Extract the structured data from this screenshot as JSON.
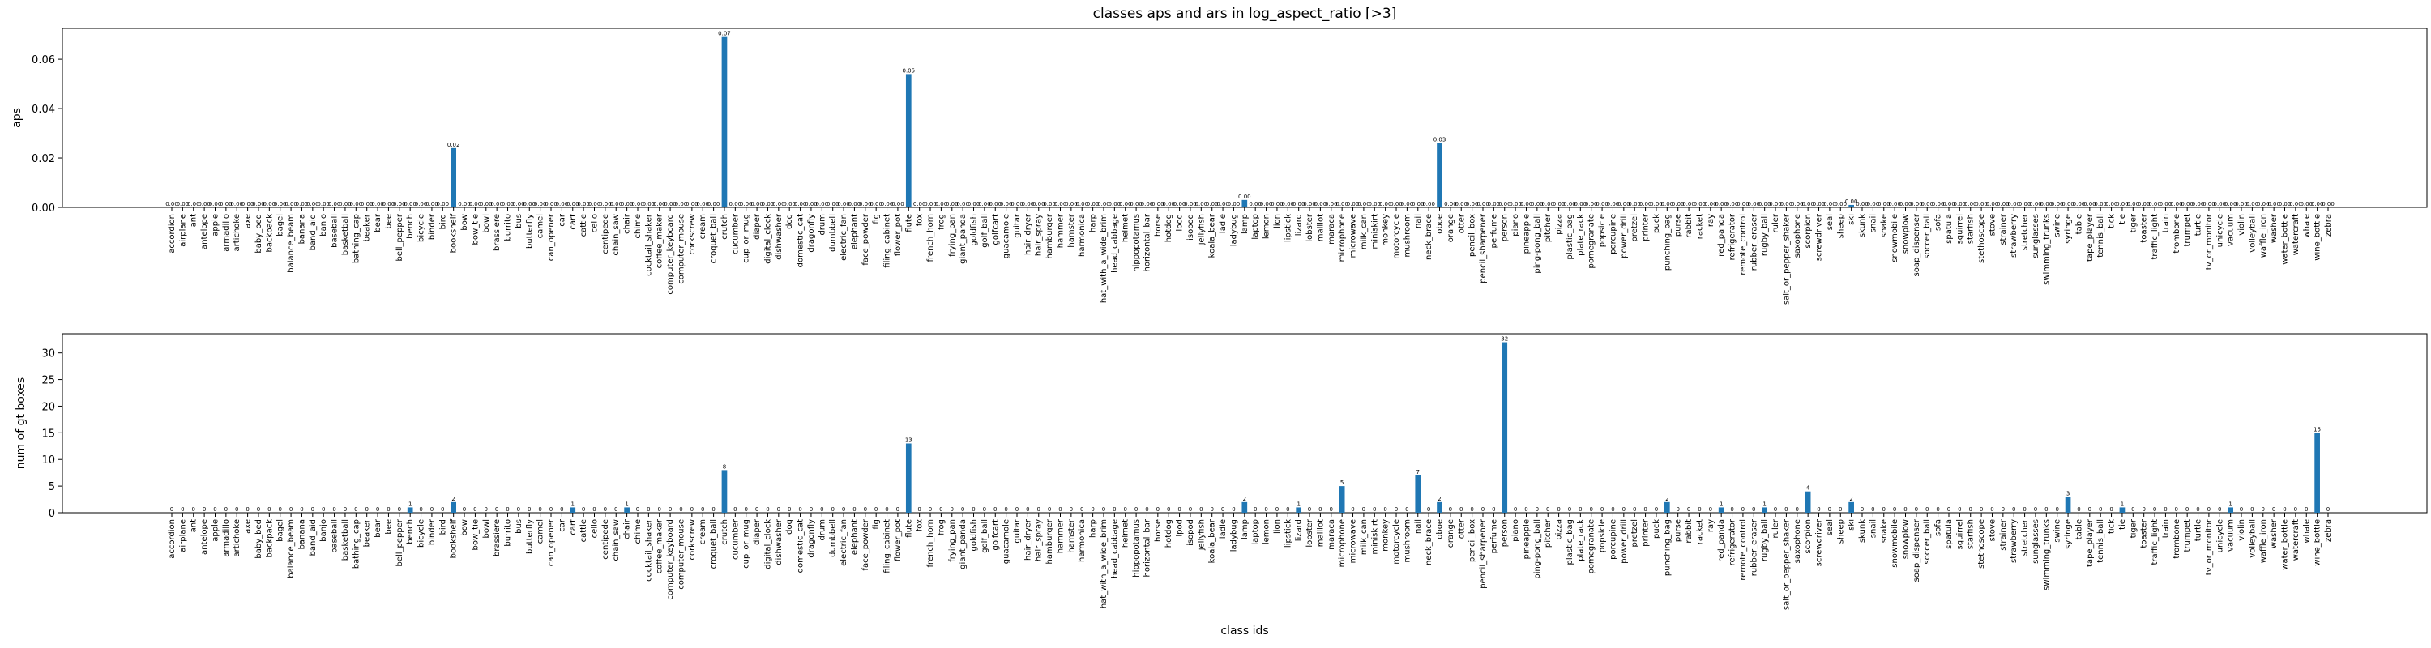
{
  "chart_data": [
    {
      "type": "bar",
      "title": "classes aps and ars in log_aspect_ratio [>3]",
      "ylabel": "aps",
      "color": "#1f77b4",
      "categories": [
        "accordion",
        "airplane",
        "ant",
        "antelope",
        "apple",
        "armadillo",
        "artichoke",
        "axe",
        "baby_bed",
        "backpack",
        "bagel",
        "balance_beam",
        "banana",
        "band_aid",
        "banjo",
        "baseball",
        "basketball",
        "bathing_cap",
        "beaker",
        "bear",
        "bee",
        "bell_pepper",
        "bench",
        "bicycle",
        "binder",
        "bird",
        "bookshelf",
        "bow",
        "bow_tie",
        "bowl",
        "brassiere",
        "burrito",
        "bus",
        "butterfly",
        "camel",
        "can_opener",
        "car",
        "cart",
        "cattle",
        "cello",
        "centipede",
        "chain_saw",
        "chair",
        "chime",
        "cocktail_shaker",
        "coffee_maker",
        "computer_keyboard",
        "computer_mouse",
        "corkscrew",
        "cream",
        "croquet_ball",
        "crutch",
        "cucumber",
        "cup_or_mug",
        "diaper",
        "digital_clock",
        "dishwasher",
        "dog",
        "domestic_cat",
        "dragonfly",
        "drum",
        "dumbbell",
        "electric_fan",
        "elephant",
        "face_powder",
        "fig",
        "filing_cabinet",
        "flower_pot",
        "flute",
        "fox",
        "french_horn",
        "frog",
        "frying_pan",
        "giant_panda",
        "goldfish",
        "golf_ball",
        "golfcart",
        "guacamole",
        "guitar",
        "hair_dryer",
        "hair_spray",
        "hamburger",
        "hammer",
        "hamster",
        "harmonica",
        "harp",
        "hat_with_a_wide_brim",
        "head_cabbage",
        "helmet",
        "hippopotamus",
        "horizontal_bar",
        "horse",
        "hotdog",
        "ipod",
        "isopod",
        "jellyfish",
        "koala_bear",
        "ladle",
        "ladybug",
        "lamp",
        "laptop",
        "lemon",
        "lion",
        "lipstick",
        "lizard",
        "lobster",
        "maillot",
        "maraca",
        "microphone",
        "microwave",
        "milk_can",
        "miniskirt",
        "monkey",
        "motorcycle",
        "mushroom",
        "nail",
        "neck_brace",
        "oboe",
        "orange",
        "otter",
        "pencil_box",
        "pencil_sharpener",
        "perfume",
        "person",
        "piano",
        "pineapple",
        "ping-pong_ball",
        "pitcher",
        "pizza",
        "plastic_bag",
        "plate_rack",
        "pomegranate",
        "popsicle",
        "porcupine",
        "power_drill",
        "pretzel",
        "printer",
        "puck",
        "punching_bag",
        "purse",
        "rabbit",
        "racket",
        "ray",
        "red_panda",
        "refrigerator",
        "remote_control",
        "rubber_eraser",
        "rugby_ball",
        "ruler",
        "salt_or_pepper_shaker",
        "saxophone",
        "scorpion",
        "screwdriver",
        "seal",
        "sheep",
        "ski",
        "skunk",
        "snail",
        "snake",
        "snowmobile",
        "snowplow",
        "soap_dispenser",
        "soccer_ball",
        "sofa",
        "spatula",
        "squirrel",
        "starfish",
        "stethoscope",
        "stove",
        "strainer",
        "strawberry",
        "stretcher",
        "sunglasses",
        "swimming_trunks",
        "swine",
        "syringe",
        "table",
        "tape_player",
        "tennis_ball",
        "tick",
        "tie",
        "tiger",
        "toaster",
        "traffic_light",
        "train",
        "trombone",
        "trumpet",
        "turtle",
        "tv_or_monitor",
        "unicycle",
        "vacuum",
        "violin",
        "volleyball",
        "waffle_iron",
        "washer",
        "water_bottle",
        "watercraft",
        "whale",
        "wine_bottle",
        "zebra"
      ],
      "values": [
        0,
        0,
        0,
        0,
        0,
        0,
        0,
        0,
        0,
        0,
        0,
        0,
        0,
        0,
        0,
        0,
        0,
        0,
        0,
        0,
        0,
        0,
        0,
        0,
        0,
        0,
        0.024,
        0,
        0,
        0,
        0,
        0,
        0,
        0,
        0,
        0,
        0,
        0,
        0,
        0,
        0,
        0,
        0,
        0,
        0,
        0,
        0,
        0,
        0,
        0,
        0,
        0.069,
        0,
        0,
        0,
        0,
        0,
        0,
        0,
        0,
        0,
        0,
        0,
        0,
        0,
        0,
        0,
        0,
        0.054,
        0,
        0,
        0,
        0,
        0,
        0,
        0,
        0,
        0,
        0,
        0,
        0,
        0,
        0,
        0,
        0,
        0,
        0,
        0,
        0,
        0,
        0,
        0,
        0,
        0,
        0,
        0,
        0,
        0,
        0,
        0.003,
        0,
        0,
        0,
        0,
        0,
        0,
        0,
        0,
        0,
        0,
        0,
        0,
        0,
        0,
        0,
        0,
        0,
        0.026,
        0,
        0,
        0,
        0,
        0,
        0,
        0,
        0,
        0,
        0,
        0,
        0,
        0,
        0,
        0,
        0,
        0,
        0,
        0,
        0,
        0,
        0,
        0,
        0,
        0,
        0,
        0,
        0,
        0,
        0,
        0,
        0,
        0,
        0,
        0,
        0,
        0,
        0.001,
        0,
        0,
        0,
        0,
        0,
        0,
        0,
        0,
        0,
        0,
        0,
        0,
        0,
        0,
        0,
        0,
        0,
        0,
        0,
        0,
        0,
        0,
        0,
        0,
        0,
        0,
        0,
        0,
        0,
        0,
        0,
        0,
        0,
        0,
        0,
        0,
        0,
        0,
        0,
        0,
        0,
        0,
        0,
        0
      ],
      "value_labels": [
        "0.00",
        "0.00",
        "0.00",
        "0.00",
        "0.00",
        "0.00",
        "0.00",
        "0.00",
        "0.00",
        "0.00",
        "0.00",
        "0.00",
        "0.00",
        "0.00",
        "0.00",
        "0.00",
        "0.00",
        "0.00",
        "0.00",
        "0.00",
        "0.00",
        "0.00",
        "0.00",
        "0.00",
        "0.00",
        "0.00",
        "0.02",
        "0.00",
        "0.00",
        "0.00",
        "0.00",
        "0.00",
        "0.00",
        "0.00",
        "0.00",
        "0.00",
        "0.00",
        "0.00",
        "0.00",
        "0.00",
        "0.00",
        "0.00",
        "0.00",
        "0.00",
        "0.00",
        "0.00",
        "0.00",
        "0.00",
        "0.00",
        "0.00",
        "0.00",
        "0.07",
        "0.00",
        "0.00",
        "0.00",
        "0.00",
        "0.00",
        "0.00",
        "0.00",
        "0.00",
        "0.00",
        "0.00",
        "0.00",
        "0.00",
        "0.00",
        "0.00",
        "0.00",
        "0.00",
        "0.05",
        "0.00",
        "0.00",
        "0.00",
        "0.00",
        "0.00",
        "0.00",
        "0.00",
        "0.00",
        "0.00",
        "0.00",
        "0.00",
        "0.00",
        "0.00",
        "0.00",
        "0.00",
        "0.00",
        "0.00",
        "0.00",
        "0.00",
        "0.00",
        "0.00",
        "0.00",
        "0.00",
        "0.00",
        "0.00",
        "0.00",
        "0.00",
        "0.00",
        "0.00",
        "0.00",
        "0.00",
        "0.00",
        "0.00",
        "0.00",
        "0.00",
        "0.00",
        "0.00",
        "0.00",
        "0.00",
        "0.00",
        "0.00",
        "0.00",
        "0.00",
        "0.00",
        "0.00",
        "0.00",
        "0.00",
        "0.00",
        "0.03",
        "0.00",
        "0.00",
        "0.00",
        "0.00",
        "0.00",
        "0.00",
        "0.00",
        "0.00",
        "0.00",
        "0.00",
        "0.00",
        "0.00",
        "0.00",
        "0.00",
        "0.00",
        "0.00",
        "0.00",
        "0.00",
        "0.00",
        "0.00",
        "0.00",
        "0.00",
        "0.00",
        "0.00",
        "0.00",
        "0.00",
        "0.00",
        "0.00",
        "0.00",
        "0.00",
        "0.00",
        "0.00",
        "0.00",
        "0.00",
        "0.00",
        "0.00",
        "0.00",
        "0.00",
        "0.00",
        "0.00",
        "0.00",
        "0.00",
        "0.00",
        "0.00",
        "0.00",
        "0.00",
        "0.00",
        "0.00",
        "0.00",
        "0.00",
        "0.00",
        "0.00",
        "0.00",
        "0.00",
        "0.00",
        "0.00",
        "0.00",
        "0.00",
        "0.00",
        "0.00",
        "0.00",
        "0.00",
        "0.00",
        "0.00",
        "0.00",
        "0.00",
        "0.00",
        "0.00",
        "0.00",
        "0.00",
        "0.00",
        "0.00",
        "0.00",
        "0.00",
        "0.00",
        "0.00",
        "0.00",
        "0.00",
        "0.00",
        "0.00",
        "0.00",
        "0.00"
      ],
      "ylim": [
        0,
        0.0725
      ],
      "yticks": [
        {
          "value": 0,
          "label": "0.00"
        },
        0.02,
        0.04,
        0.06
      ]
    },
    {
      "type": "bar",
      "ylabel": "num of gt boxes",
      "xlabel": "class ids",
      "color": "#1f77b4",
      "categories": [
        "accordion",
        "airplane",
        "ant",
        "antelope",
        "apple",
        "armadillo",
        "artichoke",
        "axe",
        "baby_bed",
        "backpack",
        "bagel",
        "balance_beam",
        "banana",
        "band_aid",
        "banjo",
        "baseball",
        "basketball",
        "bathing_cap",
        "beaker",
        "bear",
        "bee",
        "bell_pepper",
        "bench",
        "bicycle",
        "binder",
        "bird",
        "bookshelf",
        "bow",
        "bow_tie",
        "bowl",
        "brassiere",
        "burrito",
        "bus",
        "butterfly",
        "camel",
        "can_opener",
        "car",
        "cart",
        "cattle",
        "cello",
        "centipede",
        "chain_saw",
        "chair",
        "chime",
        "cocktail_shaker",
        "coffee_maker",
        "computer_keyboard",
        "computer_mouse",
        "corkscrew",
        "cream",
        "croquet_ball",
        "crutch",
        "cucumber",
        "cup_or_mug",
        "diaper",
        "digital_clock",
        "dishwasher",
        "dog",
        "domestic_cat",
        "dragonfly",
        "drum",
        "dumbbell",
        "electric_fan",
        "elephant",
        "face_powder",
        "fig",
        "filing_cabinet",
        "flower_pot",
        "flute",
        "fox",
        "french_horn",
        "frog",
        "frying_pan",
        "giant_panda",
        "goldfish",
        "golf_ball",
        "golfcart",
        "guacamole",
        "guitar",
        "hair_dryer",
        "hair_spray",
        "hamburger",
        "hammer",
        "hamster",
        "harmonica",
        "harp",
        "hat_with_a_wide_brim",
        "head_cabbage",
        "helmet",
        "hippopotamus",
        "horizontal_bar",
        "horse",
        "hotdog",
        "ipod",
        "isopod",
        "jellyfish",
        "koala_bear",
        "ladle",
        "ladybug",
        "lamp",
        "laptop",
        "lemon",
        "lion",
        "lipstick",
        "lizard",
        "lobster",
        "maillot",
        "maraca",
        "microphone",
        "microwave",
        "milk_can",
        "miniskirt",
        "monkey",
        "motorcycle",
        "mushroom",
        "nail",
        "neck_brace",
        "oboe",
        "orange",
        "otter",
        "pencil_box",
        "pencil_sharpener",
        "perfume",
        "person",
        "piano",
        "pineapple",
        "ping-pong_ball",
        "pitcher",
        "pizza",
        "plastic_bag",
        "plate_rack",
        "pomegranate",
        "popsicle",
        "porcupine",
        "power_drill",
        "pretzel",
        "printer",
        "puck",
        "punching_bag",
        "purse",
        "rabbit",
        "racket",
        "ray",
        "red_panda",
        "refrigerator",
        "remote_control",
        "rubber_eraser",
        "rugby_ball",
        "ruler",
        "salt_or_pepper_shaker",
        "saxophone",
        "scorpion",
        "screwdriver",
        "seal",
        "sheep",
        "ski",
        "skunk",
        "snail",
        "snake",
        "snowmobile",
        "snowplow",
        "soap_dispenser",
        "soccer_ball",
        "sofa",
        "spatula",
        "squirrel",
        "starfish",
        "stethoscope",
        "stove",
        "strainer",
        "strawberry",
        "stretcher",
        "sunglasses",
        "swimming_trunks",
        "swine",
        "syringe",
        "table",
        "tape_player",
        "tennis_ball",
        "tick",
        "tie",
        "tiger",
        "toaster",
        "traffic_light",
        "train",
        "trombone",
        "trumpet",
        "turtle",
        "tv_or_monitor",
        "unicycle",
        "vacuum",
        "violin",
        "volleyball",
        "waffle_iron",
        "washer",
        "water_bottle",
        "watercraft",
        "whale",
        "wine_bottle",
        "zebra"
      ],
      "values": [
        0,
        0,
        0,
        0,
        0,
        0,
        0,
        0,
        0,
        0,
        0,
        0,
        0,
        0,
        0,
        0,
        0,
        0,
        0,
        0,
        0,
        0,
        1,
        0,
        0,
        0,
        2,
        0,
        0,
        0,
        0,
        0,
        0,
        0,
        0,
        0,
        0,
        1,
        0,
        0,
        0,
        0,
        1,
        0,
        0,
        0,
        0,
        0,
        0,
        0,
        0,
        8,
        0,
        0,
        0,
        0,
        0,
        0,
        0,
        0,
        0,
        0,
        0,
        0,
        0,
        0,
        0,
        0,
        13,
        0,
        0,
        0,
        0,
        0,
        0,
        0,
        0,
        0,
        0,
        0,
        0,
        0,
        0,
        0,
        0,
        0,
        0,
        0,
        0,
        0,
        0,
        0,
        0,
        0,
        0,
        0,
        0,
        0,
        0,
        2,
        0,
        0,
        0,
        0,
        1,
        0,
        0,
        0,
        5,
        0,
        0,
        0,
        0,
        0,
        0,
        7,
        0,
        2,
        0,
        0,
        0,
        0,
        0,
        32,
        0,
        0,
        0,
        0,
        0,
        0,
        0,
        0,
        0,
        0,
        0,
        0,
        0,
        0,
        2,
        0,
        0,
        0,
        0,
        1,
        0,
        0,
        0,
        1,
        0,
        0,
        0,
        4,
        0,
        0,
        0,
        2,
        0,
        0,
        0,
        0,
        0,
        0,
        0,
        0,
        0,
        0,
        0,
        0,
        0,
        0,
        0,
        0,
        0,
        0,
        0,
        3,
        0,
        0,
        0,
        0,
        1,
        0,
        0,
        0,
        0,
        0,
        0,
        0,
        0,
        0,
        1,
        0,
        0,
        0,
        0,
        0,
        0,
        0,
        15,
        0
      ],
      "ylim": [
        0,
        33.6
      ],
      "yticks": [
        0,
        5,
        10,
        15,
        20,
        25,
        30
      ]
    }
  ]
}
